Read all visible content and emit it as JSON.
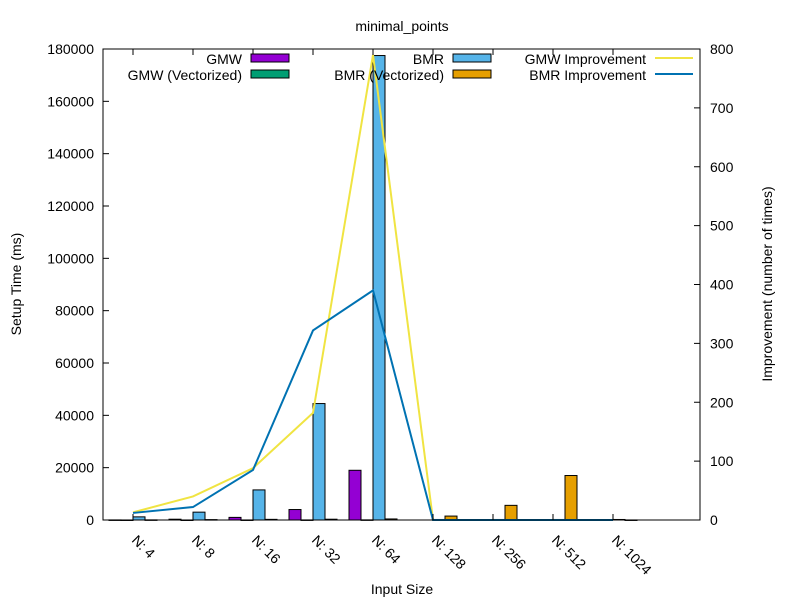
{
  "chart_data": {
    "type": "bar",
    "title": "minimal_points",
    "xlabel": "Input Size",
    "ylabel": "Setup Time (ms)",
    "y2label": "Improvement (number of times)",
    "categories": [
      "N: 4",
      "N: 8",
      "N: 16",
      "N: 32",
      "N: 64",
      "N: 128",
      "N: 256",
      "N: 512",
      "N: 1024"
    ],
    "ylim": [
      0,
      180000
    ],
    "yticks": [
      0,
      20000,
      40000,
      60000,
      80000,
      100000,
      120000,
      140000,
      160000,
      180000
    ],
    "y2lim": [
      0,
      800
    ],
    "y2ticks": [
      0,
      100,
      200,
      300,
      400,
      500,
      600,
      700,
      800
    ],
    "legend_position": "top",
    "grid": false,
    "series": [
      {
        "name": "GMW",
        "kind": "bar",
        "color": "#9400d3",
        "values": [
          30,
          300,
          1000,
          4000,
          19000,
          null,
          null,
          null,
          null
        ]
      },
      {
        "name": "GMW (Vectorized)",
        "kind": "bar",
        "color": "#009e73",
        "values": [
          10,
          10,
          20,
          30,
          50,
          null,
          null,
          null,
          null
        ]
      },
      {
        "name": "BMR",
        "kind": "bar",
        "color": "#56b4e9",
        "values": [
          1200,
          3000,
          11500,
          44500,
          177500,
          200,
          200,
          200,
          200
        ]
      },
      {
        "name": "BMR (Vectorized)",
        "kind": "bar",
        "color": "#e69f00",
        "values": [
          50,
          150,
          250,
          300,
          400,
          1500,
          5600,
          17000,
          20
        ]
      },
      {
        "name": "GMW Improvement",
        "kind": "line",
        "color": "#f0e442",
        "values": [
          13,
          40,
          88,
          182,
          790,
          0,
          0,
          0,
          0
        ]
      },
      {
        "name": "BMR Improvement",
        "kind": "line",
        "color": "#0072b2",
        "values": [
          12,
          22,
          85,
          322,
          390,
          0,
          0,
          0,
          0
        ]
      }
    ]
  }
}
